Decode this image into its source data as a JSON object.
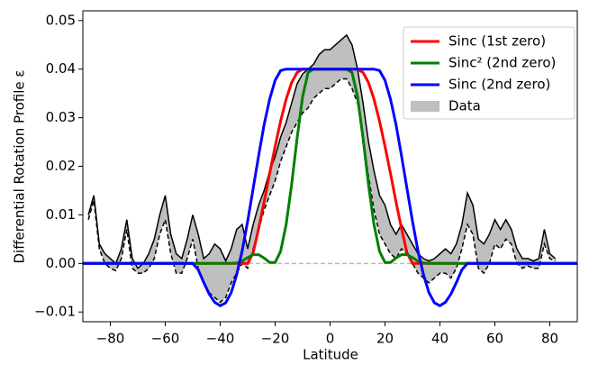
{
  "chart_data": {
    "type": "line",
    "xlabel": "Latitude",
    "ylabel": "Differential Rotation Profile ε",
    "xlim": [
      -90,
      90
    ],
    "ylim": [
      -0.012,
      0.052
    ],
    "xticks": [
      {
        "value": -80,
        "label": "−80"
      },
      {
        "value": -60,
        "label": "−60"
      },
      {
        "value": -40,
        "label": "−40"
      },
      {
        "value": -20,
        "label": "−20"
      },
      0,
      20,
      40,
      60,
      80
    ],
    "yticks": [
      {
        "value": -0.01,
        "label": "−0.01"
      },
      {
        "value": 0,
        "label": "0.00"
      },
      0.01,
      0.02,
      0.03,
      0.04,
      0.05
    ],
    "legend": "upper right",
    "reference_line": {
      "value": 0,
      "color": "#bbbbbb"
    },
    "series": [
      {
        "name": "Sinc (1st zero)",
        "color": "#ff0000",
        "x": [
          -90,
          -50,
          -48,
          -46,
          -44,
          -42,
          -40,
          -38,
          -36,
          -34,
          -32,
          -30,
          -28,
          -26,
          -24,
          -22,
          -20,
          -18,
          -16,
          -14,
          -12,
          -10,
          -8,
          -6,
          -4,
          -2,
          0,
          2,
          4,
          6,
          8,
          10,
          12,
          14,
          16,
          18,
          20,
          22,
          24,
          26,
          28,
          30,
          32,
          34,
          36,
          38,
          40,
          42,
          44,
          46,
          48,
          50,
          90
        ],
        "values": [
          0,
          0,
          0,
          0,
          0,
          0,
          0,
          0,
          0,
          0,
          0,
          0,
          0.0022,
          0.0072,
          0.0127,
          0.0185,
          0.0241,
          0.0293,
          0.0338,
          0.0372,
          0.0393,
          0.04,
          0.04,
          0.04,
          0.04,
          0.04,
          0.04,
          0.04,
          0.04,
          0.04,
          0.04,
          0.04,
          0.0393,
          0.0372,
          0.0338,
          0.0293,
          0.0241,
          0.0185,
          0.0127,
          0.0072,
          0.0022,
          0,
          0,
          0,
          0,
          0,
          0,
          0,
          0,
          0,
          0,
          0,
          0
        ]
      },
      {
        "name": "Sinc² (2nd zero)",
        "color": "#008000",
        "x": [
          -90,
          -50,
          -48,
          -46,
          -44,
          -42,
          -40,
          -38,
          -36,
          -34,
          -32,
          -30,
          -28,
          -26,
          -24,
          -22,
          -20,
          -18,
          -16,
          -14,
          -12,
          -10,
          -8,
          -6,
          -4,
          -2,
          0,
          2,
          4,
          6,
          8,
          10,
          12,
          14,
          16,
          18,
          20,
          22,
          24,
          26,
          28,
          30,
          32,
          34,
          36,
          38,
          40,
          42,
          44,
          46,
          48,
          50,
          90
        ],
        "values": [
          0,
          0,
          0,
          0,
          0,
          0,
          0,
          0,
          0,
          0.0001,
          0.0005,
          0.0012,
          0.0018,
          0.0018,
          0.0011,
          0.0002,
          0.0002,
          0.0025,
          0.008,
          0.0162,
          0.0258,
          0.0343,
          0.0393,
          0.04,
          0.04,
          0.04,
          0.04,
          0.04,
          0.04,
          0.04,
          0.0393,
          0.0343,
          0.0258,
          0.0162,
          0.008,
          0.0025,
          0.0002,
          0.0002,
          0.0011,
          0.0018,
          0.0018,
          0.0012,
          0.0005,
          0.0001,
          0,
          0,
          0,
          0,
          0,
          0,
          0,
          0,
          0
        ]
      },
      {
        "name": "Sinc (2nd zero)",
        "color": "#0000ff",
        "x": [
          -90,
          -50,
          -48,
          -46,
          -44,
          -42,
          -40,
          -38,
          -36,
          -34,
          -32,
          -30,
          -28,
          -26,
          -24,
          -22,
          -20,
          -18,
          -16,
          -14,
          -12,
          -10,
          -8,
          -6,
          -4,
          -2,
          0,
          2,
          4,
          6,
          8,
          10,
          12,
          14,
          16,
          18,
          20,
          22,
          24,
          26,
          28,
          30,
          32,
          34,
          36,
          38,
          40,
          42,
          44,
          46,
          48,
          50,
          90
        ],
        "values": [
          0,
          0,
          -0.0013,
          -0.0039,
          -0.0063,
          -0.008,
          -0.0087,
          -0.0081,
          -0.006,
          -0.0023,
          0.0026,
          0.0087,
          0.0154,
          0.0222,
          0.0286,
          0.0338,
          0.0377,
          0.0397,
          0.04,
          0.04,
          0.04,
          0.04,
          0.04,
          0.04,
          0.04,
          0.04,
          0.04,
          0.04,
          0.04,
          0.04,
          0.04,
          0.04,
          0.04,
          0.04,
          0.04,
          0.0397,
          0.0377,
          0.0338,
          0.0286,
          0.0222,
          0.0154,
          0.0087,
          0.0026,
          -0.0023,
          -0.006,
          -0.0081,
          -0.0087,
          -0.008,
          -0.0063,
          -0.0039,
          -0.0013,
          0,
          0
        ]
      }
    ],
    "band": {
      "name": "Data",
      "color": "#bfbfbf",
      "x": [
        -88,
        -86,
        -84,
        -82,
        -80,
        -78,
        -76,
        -74,
        -72,
        -70,
        -68,
        -66,
        -64,
        -62,
        -60,
        -58,
        -56,
        -54,
        -52,
        -50,
        -48,
        -46,
        -44,
        -42,
        -40,
        -38,
        -36,
        -34,
        -32,
        -30,
        -28,
        -26,
        -24,
        -22,
        -20,
        -18,
        -16,
        -14,
        -12,
        -10,
        -8,
        -6,
        -4,
        -2,
        0,
        2,
        4,
        6,
        8,
        10,
        12,
        14,
        16,
        18,
        20,
        22,
        24,
        26,
        28,
        30,
        32,
        34,
        36,
        38,
        40,
        42,
        44,
        46,
        48,
        50,
        52,
        54,
        56,
        58,
        60,
        62,
        64,
        66,
        68,
        70,
        72,
        74,
        76,
        78,
        80,
        82
      ],
      "upper": [
        0.01,
        0.014,
        0.004,
        0.002,
        0.001,
        0.0,
        0.003,
        0.009,
        0.001,
        -0.001,
        0.0,
        0.002,
        0.005,
        0.01,
        0.014,
        0.006,
        0.002,
        0.001,
        0.005,
        0.01,
        0.006,
        0.001,
        0.002,
        0.004,
        0.003,
        0.0005,
        0.003,
        0.007,
        0.008,
        0.003,
        0.008,
        0.012,
        0.015,
        0.019,
        0.022,
        0.026,
        0.029,
        0.033,
        0.037,
        0.039,
        0.04,
        0.041,
        0.043,
        0.044,
        0.044,
        0.045,
        0.046,
        0.047,
        0.045,
        0.04,
        0.033,
        0.025,
        0.019,
        0.014,
        0.012,
        0.008,
        0.006,
        0.008,
        0.006,
        0.004,
        0.002,
        0.001,
        0.0005,
        0.001,
        0.002,
        0.003,
        0.002,
        0.004,
        0.008,
        0.0145,
        0.012,
        0.005,
        0.004,
        0.006,
        0.009,
        0.007,
        0.009,
        0.007,
        0.003,
        0.001,
        0.001,
        0.0005,
        0.001,
        0.007,
        0.002,
        0.001
      ],
      "lower": [
        0.009,
        0.013,
        0.003,
        0.0,
        -0.001,
        -0.0015,
        0.001,
        0.007,
        -0.001,
        -0.002,
        -0.002,
        -0.001,
        0.001,
        0.006,
        0.009,
        0.002,
        -0.002,
        -0.002,
        0.001,
        0.005,
        -0.001,
        -0.004,
        -0.006,
        -0.007,
        -0.008,
        -0.007,
        -0.004,
        -0.002,
        0.0,
        -0.001,
        0.003,
        0.007,
        0.011,
        0.014,
        0.017,
        0.021,
        0.024,
        0.027,
        0.029,
        0.031,
        0.032,
        0.034,
        0.035,
        0.036,
        0.036,
        0.037,
        0.038,
        0.038,
        0.036,
        0.033,
        0.026,
        0.018,
        0.011,
        0.006,
        0.004,
        0.002,
        0.001,
        0.003,
        0.002,
        0.0,
        -0.002,
        -0.003,
        -0.004,
        -0.003,
        -0.002,
        -0.002,
        -0.003,
        -0.001,
        0.003,
        0.008,
        0.006,
        -0.001,
        -0.002,
        0.0,
        0.004,
        0.003,
        0.005,
        0.004,
        0.0,
        -0.001,
        -0.0005,
        -0.001,
        -0.001,
        0.004,
        0.001,
        0.0005
      ]
    }
  }
}
